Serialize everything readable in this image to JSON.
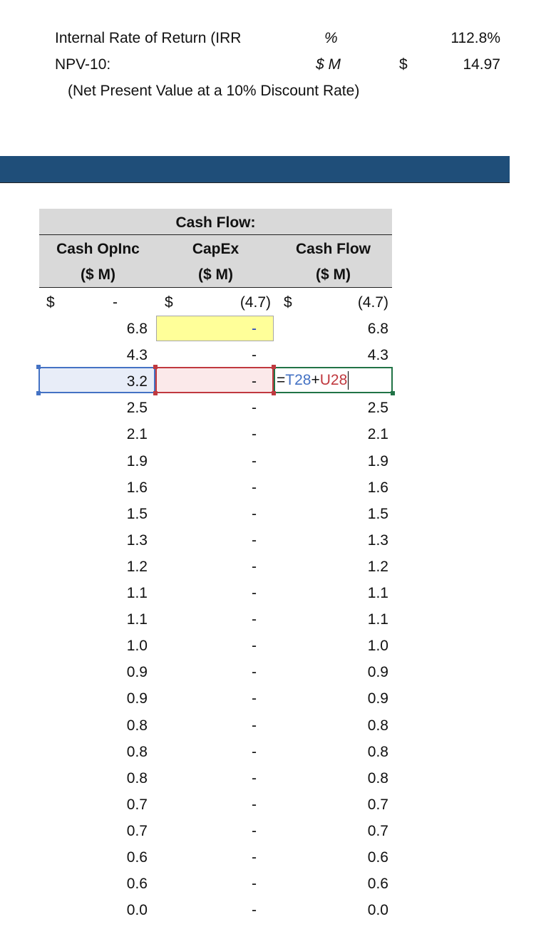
{
  "summary": {
    "irr": {
      "label": "Internal Rate of Return (IRR",
      "unit": "%",
      "currency": "",
      "value": "112.8%"
    },
    "npv": {
      "label": "NPV-10:",
      "unit": "$ M",
      "currency": "$",
      "value": "14.97"
    },
    "npv_note": "(Net Present Value at a 10% Discount Rate)"
  },
  "banner": {
    "color": "#1f4e79"
  },
  "table": {
    "group_header": "Cash Flow:",
    "columns": [
      {
        "line1": "Cash OpInc",
        "line2": "($ M)"
      },
      {
        "line1": "CapEx",
        "line2": "($ M)"
      },
      {
        "line1": "Cash Flow",
        "line2": "($ M)"
      }
    ],
    "first_row": {
      "c1_currency": "$",
      "c1": "-",
      "c2_currency": "$",
      "c2": "(4.7)",
      "c3_currency": "$",
      "c3": "(4.7)"
    },
    "rows": [
      {
        "opinc": "6.8",
        "capex": "-",
        "cf": "6.8"
      },
      {
        "opinc": "4.3",
        "capex": "-",
        "cf": "4.3"
      },
      {
        "opinc": "3.2",
        "capex": "-",
        "cf": "=T28+U28"
      },
      {
        "opinc": "2.5",
        "capex": "-",
        "cf": "2.5"
      },
      {
        "opinc": "2.1",
        "capex": "-",
        "cf": "2.1"
      },
      {
        "opinc": "1.9",
        "capex": "-",
        "cf": "1.9"
      },
      {
        "opinc": "1.6",
        "capex": "-",
        "cf": "1.6"
      },
      {
        "opinc": "1.5",
        "capex": "-",
        "cf": "1.5"
      },
      {
        "opinc": "1.3",
        "capex": "-",
        "cf": "1.3"
      },
      {
        "opinc": "1.2",
        "capex": "-",
        "cf": "1.2"
      },
      {
        "opinc": "1.1",
        "capex": "-",
        "cf": "1.1"
      },
      {
        "opinc": "1.1",
        "capex": "-",
        "cf": "1.1"
      },
      {
        "opinc": "1.0",
        "capex": "-",
        "cf": "1.0"
      },
      {
        "opinc": "0.9",
        "capex": "-",
        "cf": "0.9"
      },
      {
        "opinc": "0.9",
        "capex": "-",
        "cf": "0.9"
      },
      {
        "opinc": "0.8",
        "capex": "-",
        "cf": "0.8"
      },
      {
        "opinc": "0.8",
        "capex": "-",
        "cf": "0.8"
      },
      {
        "opinc": "0.8",
        "capex": "-",
        "cf": "0.8"
      },
      {
        "opinc": "0.7",
        "capex": "-",
        "cf": "0.7"
      },
      {
        "opinc": "0.7",
        "capex": "-",
        "cf": "0.7"
      },
      {
        "opinc": "0.6",
        "capex": "-",
        "cf": "0.6"
      },
      {
        "opinc": "0.6",
        "capex": "-",
        "cf": "0.6"
      },
      {
        "opinc": "0.0",
        "capex": "-",
        "cf": "0.0"
      }
    ],
    "editing_formula": {
      "eq": "=",
      "ref1": "T28",
      "plus": "+",
      "ref2": "U28"
    },
    "colors": {
      "ref1": "#4472c4",
      "ref2": "#c0393f",
      "active": "#217346",
      "input": "#ffff99"
    }
  }
}
